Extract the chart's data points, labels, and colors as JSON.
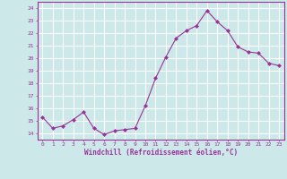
{
  "x": [
    0,
    1,
    2,
    3,
    4,
    5,
    6,
    7,
    8,
    9,
    10,
    11,
    12,
    13,
    14,
    15,
    16,
    17,
    18,
    19,
    20,
    21,
    22,
    23
  ],
  "y": [
    15.3,
    14.4,
    14.6,
    15.1,
    15.7,
    14.4,
    13.9,
    14.2,
    14.3,
    14.4,
    16.2,
    18.4,
    20.1,
    21.6,
    22.2,
    22.6,
    23.8,
    22.9,
    22.2,
    20.9,
    20.5,
    20.4,
    19.6,
    19.4
  ],
  "line_color": "#993399",
  "marker": "D",
  "marker_size": 2.0,
  "xlabel": "Windchill (Refroidissement éolien,°C)",
  "ylim": [
    13.5,
    24.5
  ],
  "yticks": [
    14,
    15,
    16,
    17,
    18,
    19,
    20,
    21,
    22,
    23,
    24
  ],
  "xticks": [
    0,
    1,
    2,
    3,
    4,
    5,
    6,
    7,
    8,
    9,
    10,
    11,
    12,
    13,
    14,
    15,
    16,
    17,
    18,
    19,
    20,
    21,
    22,
    23
  ],
  "bg_color": "#cce8e8",
  "grid_color": "#ffffff",
  "tick_label_color": "#993399",
  "xlabel_color": "#993399"
}
